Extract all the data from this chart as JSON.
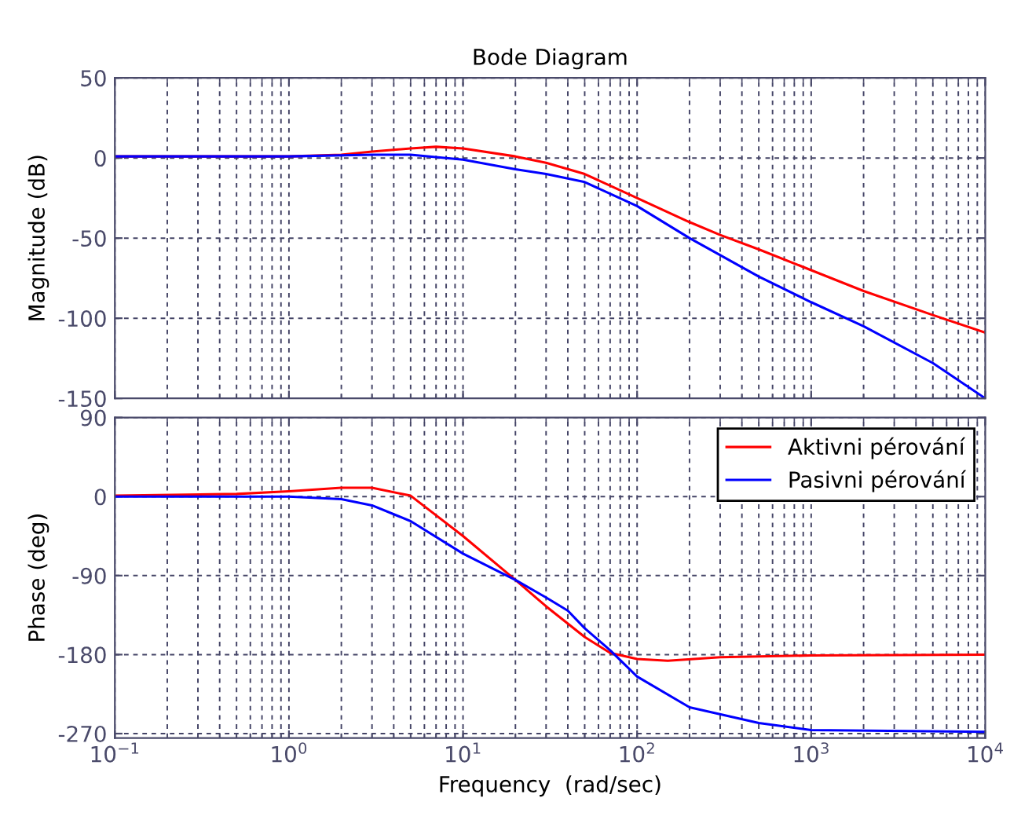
{
  "chart_data": [
    {
      "type": "line",
      "title": "Bode Diagram",
      "ylabel": "Magnitude (dB)",
      "log": "x",
      "xlim": [
        0.1,
        10000
      ],
      "xticks": [
        {
          "value": 0.1,
          "label": null
        },
        {
          "value": 1,
          "label": null
        },
        {
          "value": 10,
          "label": null
        },
        {
          "value": 100,
          "label": null
        },
        {
          "value": 1000,
          "label": null
        },
        {
          "value": 10000,
          "label": null
        }
      ],
      "ylim": [
        -150,
        50
      ],
      "yticks": [
        -150,
        -100,
        -50,
        0,
        50
      ],
      "grid": true,
      "tick_labels": "y",
      "series": [
        {
          "color": "#ff0000",
          "x": [
            0.1,
            1,
            2,
            3,
            5,
            7,
            10,
            20,
            30,
            50,
            100,
            200,
            300,
            500,
            1000,
            2000,
            5000,
            10000
          ],
          "values": [
            1,
            1,
            2,
            4,
            6,
            7,
            6,
            1,
            -3,
            -10,
            -25,
            -40,
            -48,
            -57,
            -70,
            -83,
            -98,
            -109
          ]
        },
        {
          "color": "#0000ff",
          "x": [
            0.1,
            1,
            3,
            5,
            10,
            20,
            30,
            50,
            100,
            200,
            500,
            1000,
            2000,
            5000,
            10000
          ],
          "values": [
            1,
            1,
            2,
            2,
            -1,
            -7,
            -10,
            -15,
            -30,
            -50,
            -74,
            -90,
            -105,
            -128,
            -150
          ]
        }
      ]
    },
    {
      "type": "line",
      "xlabel": "Frequency  (rad/sec)",
      "ylabel": "Phase (deg)",
      "log": "x",
      "xlim": [
        0.1,
        10000
      ],
      "xticks": [
        {
          "value": 0.1,
          "label": "10$^{−1}$"
        },
        {
          "value": 1,
          "label": "10$^{0}$"
        },
        {
          "value": 10,
          "label": "10$^{1}$"
        },
        {
          "value": 100,
          "label": "10$^{2}$"
        },
        {
          "value": 1000,
          "label": "10$^{3}$"
        },
        {
          "value": 10000,
          "label": "10$^{4}$"
        }
      ],
      "ylim": [
        -275,
        90
      ],
      "yticks": [
        -270,
        -180,
        -90,
        0,
        90
      ],
      "grid": true,
      "legend": "top right",
      "series": [
        {
          "name": "Aktivni pérování",
          "color": "#ff0000",
          "x": [
            0.1,
            0.5,
            1,
            2,
            3,
            5,
            10,
            20,
            30,
            50,
            70,
            100,
            150,
            300,
            1000,
            10000
          ],
          "values": [
            1,
            3,
            6,
            10,
            10,
            1,
            -45,
            -95,
            -125,
            -160,
            -178,
            -185,
            -187,
            -183,
            -181,
            -180
          ]
        },
        {
          "name": "Pasivni pérování",
          "color": "#0000ff",
          "x": [
            0.1,
            1,
            2,
            3,
            5,
            10,
            20,
            30,
            40,
            50,
            70,
            100,
            200,
            500,
            1000,
            10000
          ],
          "values": [
            0,
            0,
            -3,
            -10,
            -28,
            -65,
            -95,
            -115,
            -130,
            -150,
            -175,
            -205,
            -240,
            -258,
            -266,
            -268
          ]
        }
      ]
    }
  ]
}
